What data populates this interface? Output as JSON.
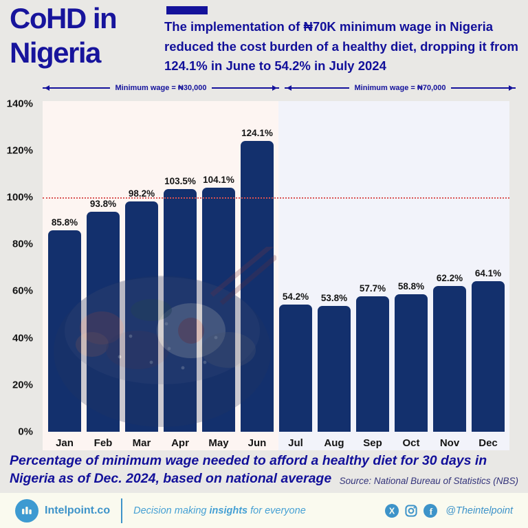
{
  "header": {
    "title": "CoHD in Nigeria",
    "subtitle": "The implementation of ₦70K minimum wage in Nigeria reduced the cost burden of a healthy diet, dropping it from 124.1% in June to 54.2% in July 2024"
  },
  "annotations": {
    "left_label": "Minimum wage = ₦30,000",
    "right_label": "Minimum wage = ₦70,000"
  },
  "chart_data": {
    "type": "bar",
    "title": "CoHD in Nigeria",
    "categories": [
      "Jan",
      "Feb",
      "Mar",
      "Apr",
      "May",
      "Jun",
      "Jul",
      "Aug",
      "Sep",
      "Oct",
      "Nov",
      "Dec"
    ],
    "values": [
      85.8,
      93.8,
      98.2,
      103.5,
      104.1,
      124.1,
      54.2,
      53.8,
      57.7,
      58.8,
      62.2,
      64.1
    ],
    "value_labels": [
      "85.8%",
      "93.8%",
      "98.2%",
      "103.5%",
      "104.1%",
      "124.1%",
      "54.2%",
      "53.8%",
      "57.7%",
      "58.8%",
      "62.2%",
      "64.1%"
    ],
    "y_ticks": [
      "140%",
      "120%",
      "100%",
      "80%",
      "60%",
      "40%",
      "20%",
      "0%"
    ],
    "ylim": [
      0,
      140
    ],
    "grid": false,
    "legend": "none",
    "reference_line": {
      "value": 100,
      "style": "dotted",
      "color": "#d95252"
    },
    "bar_color": "#13306d",
    "sections": {
      "left_label": "Minimum wage = ₦30,000",
      "left_months": [
        "Jan",
        "Feb",
        "Mar",
        "Apr",
        "May",
        "Jun"
      ],
      "right_label": "Minimum wage = ₦70,000",
      "right_months": [
        "Jul",
        "Aug",
        "Sep",
        "Oct",
        "Nov",
        "Dec"
      ],
      "left_bg": "#fdf5f2",
      "right_bg": "#f2f3fa"
    }
  },
  "caption": {
    "text": "Percentage of minimum wage needed to afford a healthy diet for 30 days in Nigeria as of Dec. 2024, based on national average",
    "source": "Source: National Bureau of Statistics (NBS)"
  },
  "footer": {
    "brand": "Intelpoint.co",
    "tagline_pre": "Decision making ",
    "tagline_bold": "insights",
    "tagline_post": " for everyone",
    "handle": "@Theintelpoint",
    "accent": "#3d93c9"
  },
  "colors": {
    "navy": "#14129b",
    "page_bg": "#e9e8e5",
    "footer_bg": "#fafaef"
  }
}
